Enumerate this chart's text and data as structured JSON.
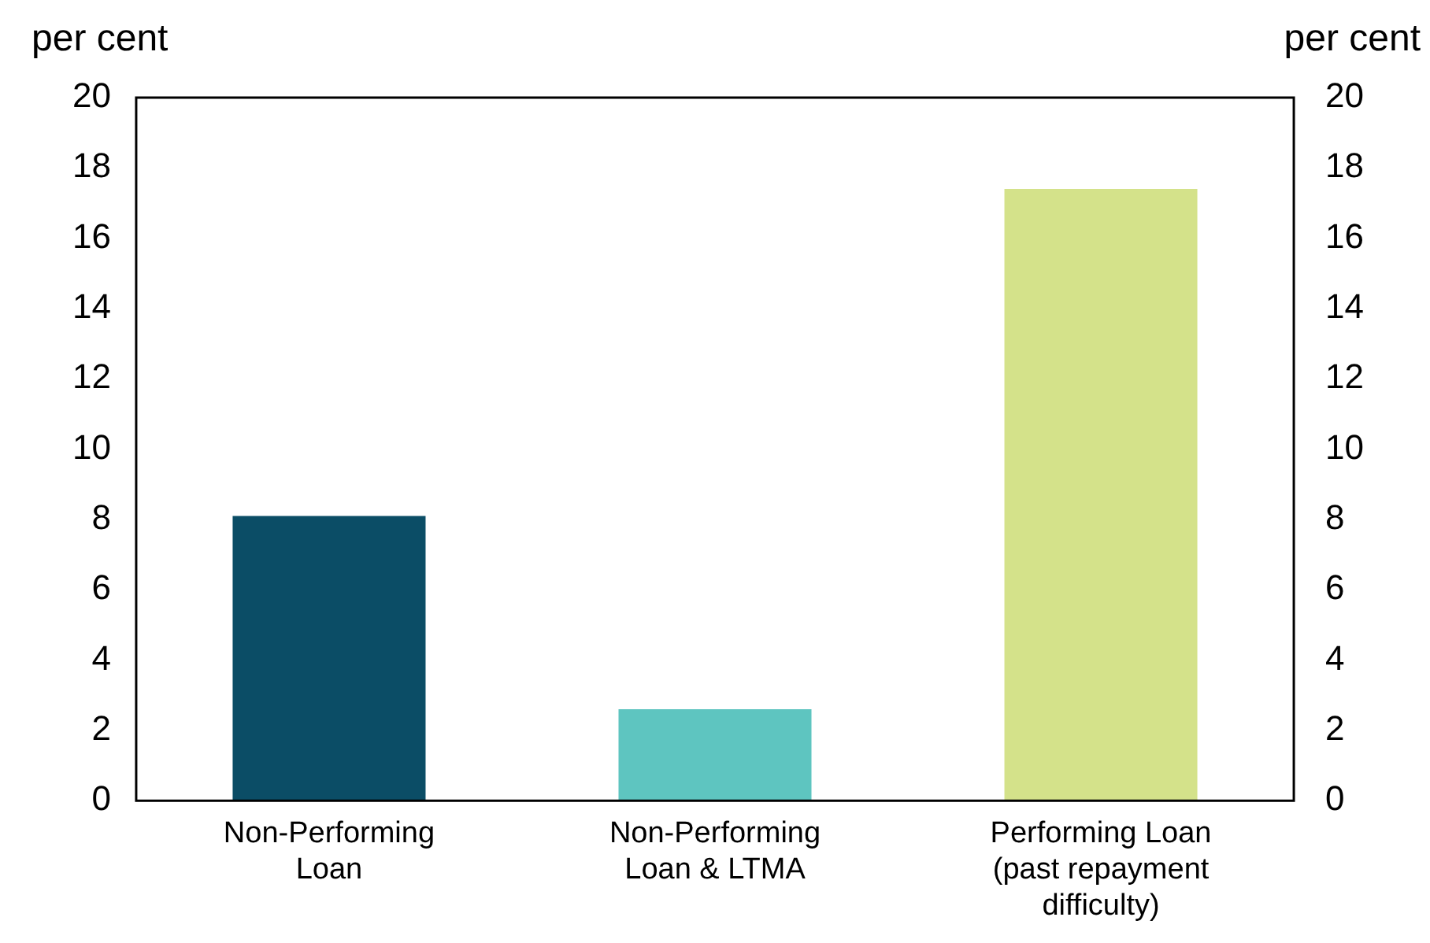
{
  "chart_data": {
    "type": "bar",
    "ylabel": "per cent",
    "y2label": "per cent",
    "categories": [
      "Non-Performing Loan",
      "Non-Performing Loan & LTMA",
      "Performing Loan (past repayment difficulty)"
    ],
    "values": [
      8.1,
      2.6,
      17.4
    ],
    "colors": [
      "#0b4d66",
      "#5ec5c0",
      "#d4e28a"
    ],
    "ylim": [
      0,
      20
    ],
    "yticks": [
      0,
      2,
      4,
      6,
      8,
      10,
      12,
      14,
      16,
      18,
      20
    ],
    "y2lim": [
      0,
      20
    ],
    "y2ticks": [
      0,
      2,
      4,
      6,
      8,
      10,
      12,
      14,
      16,
      18,
      20
    ],
    "grid": false,
    "legend": false
  }
}
